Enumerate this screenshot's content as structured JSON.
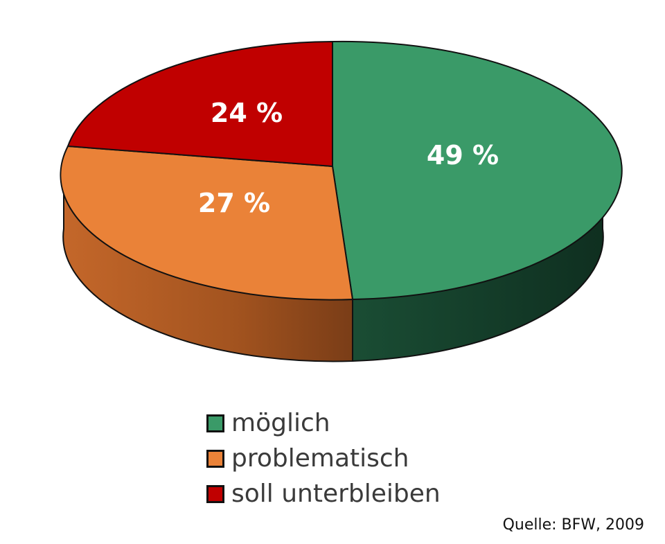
{
  "chart_data": {
    "type": "pie",
    "categories": [
      "möglich",
      "problematisch",
      "soll unterbleiben"
    ],
    "values": [
      49,
      27,
      24
    ],
    "data_labels": [
      "49 %",
      "27 %",
      "24 %"
    ],
    "colors": {
      "möglich": "#3a9a68",
      "problematisch": "#ea8238",
      "soll unterbleiben": "#c00000"
    },
    "title": "",
    "legend_position": "bottom",
    "style": "3d"
  },
  "source": "Quelle: BFW, 2009"
}
